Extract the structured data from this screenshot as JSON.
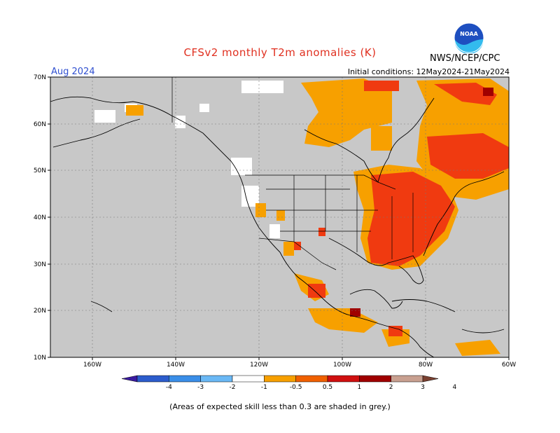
{
  "header": {
    "title": "CFSv2 monthly T2m anomalies (K)",
    "month": "Aug 2024",
    "initial_conditions": "Initial conditions: 12May2024-21May2024",
    "agency": "NWS/NCEP/CPC",
    "logo_text": "NOAA"
  },
  "map": {
    "lat_labels": [
      "70N",
      "60N",
      "50N",
      "40N",
      "30N",
      "20N",
      "10N"
    ],
    "lon_labels": [
      "160W",
      "140W",
      "120W",
      "100W",
      "80W",
      "60W"
    ],
    "background_color": "#c8c8c8",
    "ocean_color": "#c8c8c8"
  },
  "colorbar": {
    "labels": [
      "-4",
      "-3",
      "-2",
      "-1",
      "-0.5",
      "0.5",
      "1",
      "2",
      "3",
      "4"
    ],
    "colors": [
      "#3a1aa0",
      "#2c5ccc",
      "#3a8ee8",
      "#6ab8f5",
      "#ffffff",
      "#f7a000",
      "#f06000",
      "#d01010",
      "#a00000",
      "#c8a090",
      "#7a4030"
    ]
  },
  "footnote": "(Areas of expected skill less than 0.3 are shaded in grey.)"
}
